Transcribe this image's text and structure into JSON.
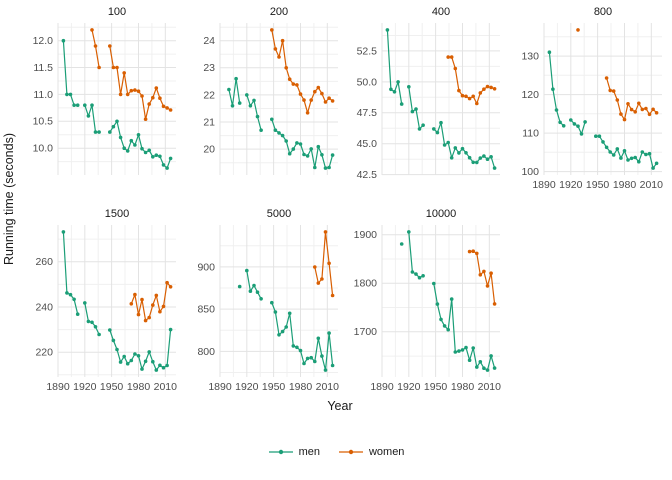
{
  "figure": {
    "xlabel": "Year",
    "ylabel": "Running time (seconds)",
    "colors": {
      "men": "#1B9E77",
      "women": "#D95F02",
      "grid_major": "#E3E3E3",
      "grid_minor": "#F0F0F0",
      "tick_text": "#4D4D4D",
      "title_text": "#1A1A1A"
    },
    "legend": {
      "position": "bottom",
      "items": [
        {
          "label": "men",
          "color": "#1B9E77"
        },
        {
          "label": "women",
          "color": "#D95F02"
        }
      ]
    }
  },
  "chart_data": {
    "type": "line",
    "title": "",
    "xlabel": "Year",
    "ylabel": "Running time (seconds)",
    "legend_position": "bottom",
    "grid": "on",
    "x_domain": [
      1890,
      2022
    ],
    "x_ticks": {
      "values": [
        1890,
        1920,
        1950,
        1980,
        2010
      ],
      "labels": [
        "1890",
        "1920",
        "1950",
        "1980",
        "2010"
      ]
    },
    "series_names": [
      "men",
      "women"
    ],
    "line_break_year_gap": 4,
    "y_expand_fraction": 0.05,
    "facets": [
      {
        "label": "100",
        "show_x_axis": false,
        "y_ticks": {
          "values": [
            10.0,
            10.5,
            11.0,
            11.5,
            12.0
          ],
          "labels": [
            "10.0",
            "10.5",
            "11.0",
            "11.5",
            "12.0"
          ]
        },
        "men": {
          "x": [
            1896,
            1900,
            1904,
            1908,
            1912,
            1920,
            1924,
            1928,
            1932,
            1936,
            1948,
            1952,
            1956,
            1960,
            1964,
            1968,
            1972,
            1976,
            1980,
            1984,
            1988,
            1992,
            1996,
            2000,
            2004,
            2008,
            2012,
            2016
          ],
          "y": [
            12.0,
            11.0,
            11.0,
            10.8,
            10.8,
            10.8,
            10.6,
            10.8,
            10.3,
            10.3,
            10.3,
            10.4,
            10.5,
            10.2,
            10.0,
            9.95,
            10.14,
            10.06,
            10.25,
            9.99,
            9.92,
            9.96,
            9.84,
            9.87,
            9.85,
            9.69,
            9.63,
            9.81
          ]
        },
        "women": {
          "x": [
            1928,
            1932,
            1936,
            1948,
            1952,
            1956,
            1960,
            1964,
            1968,
            1972,
            1976,
            1980,
            1984,
            1988,
            1992,
            1996,
            2000,
            2004,
            2008,
            2012,
            2016
          ],
          "y": [
            12.2,
            11.9,
            11.5,
            11.9,
            11.5,
            11.5,
            11.0,
            11.4,
            11.0,
            11.07,
            11.08,
            11.06,
            10.97,
            10.54,
            10.82,
            10.94,
            11.12,
            10.93,
            10.78,
            10.75,
            10.71
          ]
        }
      },
      {
        "label": "200",
        "show_x_axis": false,
        "y_ticks": {
          "values": [
            20,
            21,
            22,
            23,
            24
          ],
          "labels": [
            "20",
            "21",
            "22",
            "23",
            "24"
          ]
        },
        "men": {
          "x": [
            1900,
            1904,
            1908,
            1912,
            1920,
            1924,
            1928,
            1932,
            1936,
            1948,
            1952,
            1956,
            1960,
            1964,
            1968,
            1972,
            1976,
            1980,
            1984,
            1988,
            1992,
            1996,
            2000,
            2004,
            2008,
            2012,
            2016
          ],
          "y": [
            22.2,
            21.6,
            22.6,
            21.7,
            22.0,
            21.6,
            21.8,
            21.2,
            20.7,
            21.1,
            20.7,
            20.6,
            20.5,
            20.3,
            19.83,
            20.0,
            20.23,
            20.19,
            19.8,
            19.75,
            20.01,
            19.32,
            20.09,
            19.79,
            19.3,
            19.32,
            19.78
          ]
        },
        "women": {
          "x": [
            1948,
            1952,
            1956,
            1960,
            1964,
            1968,
            1972,
            1976,
            1980,
            1984,
            1988,
            1992,
            1996,
            2000,
            2004,
            2008,
            2012,
            2016
          ],
          "y": [
            24.4,
            23.7,
            23.4,
            24.0,
            23.0,
            22.58,
            22.4,
            22.37,
            22.03,
            21.81,
            21.34,
            21.81,
            22.12,
            22.27,
            22.05,
            21.74,
            21.88,
            21.78
          ]
        }
      },
      {
        "label": "400",
        "show_x_axis": false,
        "y_ticks": {
          "values": [
            42.5,
            45.0,
            47.5,
            50.0,
            52.5
          ],
          "labels": [
            "42.5",
            "45.0",
            "47.5",
            "50.0",
            "52.5"
          ]
        },
        "men": {
          "x": [
            1896,
            1900,
            1904,
            1908,
            1912,
            1920,
            1924,
            1928,
            1932,
            1936,
            1948,
            1952,
            1956,
            1960,
            1964,
            1968,
            1972,
            1976,
            1980,
            1984,
            1988,
            1992,
            1996,
            2000,
            2004,
            2008,
            2012,
            2016
          ],
          "y": [
            54.2,
            49.4,
            49.2,
            50.0,
            48.2,
            49.6,
            47.6,
            47.8,
            46.2,
            46.5,
            46.2,
            45.9,
            46.7,
            44.9,
            45.1,
            43.86,
            44.66,
            44.26,
            44.6,
            44.27,
            43.87,
            43.5,
            43.49,
            43.84,
            44.0,
            43.75,
            43.94,
            43.03
          ]
        },
        "women": {
          "x": [
            1964,
            1968,
            1972,
            1976,
            1980,
            1984,
            1988,
            1992,
            1996,
            2000,
            2004,
            2008,
            2012,
            2016
          ],
          "y": [
            52.0,
            52.0,
            51.08,
            49.29,
            48.88,
            48.83,
            48.65,
            48.83,
            48.25,
            49.11,
            49.41,
            49.62,
            49.55,
            49.44
          ]
        }
      },
      {
        "label": "800",
        "show_x_axis": true,
        "y_ticks": {
          "values": [
            100,
            110,
            120,
            130
          ],
          "labels": [
            "100",
            "110",
            "120",
            "130"
          ]
        },
        "men": {
          "x": [
            1896,
            1900,
            1904,
            1908,
            1912,
            1920,
            1924,
            1928,
            1932,
            1936,
            1948,
            1952,
            1956,
            1960,
            1964,
            1968,
            1972,
            1976,
            1980,
            1984,
            1988,
            1992,
            1996,
            2000,
            2004,
            2008,
            2012,
            2016
          ],
          "y": [
            131.0,
            121.4,
            116.0,
            112.8,
            111.9,
            113.4,
            112.4,
            111.8,
            109.8,
            112.9,
            109.2,
            109.2,
            107.7,
            106.3,
            105.1,
            104.3,
            105.9,
            103.5,
            105.4,
            103.0,
            103.45,
            103.66,
            102.58,
            105.08,
            104.45,
            104.65,
            100.91,
            102.15
          ]
        },
        "women": {
          "x": [
            1928,
            1960,
            1964,
            1968,
            1972,
            1976,
            1980,
            1984,
            1988,
            1992,
            1996,
            2000,
            2004,
            2008,
            2012,
            2016
          ],
          "y": [
            136.8,
            124.3,
            121.1,
            120.9,
            118.6,
            114.94,
            113.5,
            117.6,
            116.1,
            115.54,
            117.73,
            116.15,
            116.38,
            114.87,
            116.19,
            115.28
          ]
        }
      },
      {
        "label": "1500",
        "show_x_axis": true,
        "y_ticks": {
          "values": [
            220,
            240,
            260
          ],
          "labels": [
            "220",
            "240",
            "260"
          ]
        },
        "men": {
          "x": [
            1896,
            1900,
            1904,
            1908,
            1912,
            1920,
            1924,
            1928,
            1932,
            1936,
            1948,
            1952,
            1956,
            1960,
            1964,
            1968,
            1972,
            1976,
            1980,
            1984,
            1988,
            1992,
            1996,
            2000,
            2004,
            2008,
            2012,
            2016
          ],
          "y": [
            273.2,
            246.2,
            245.4,
            243.4,
            236.8,
            241.8,
            233.6,
            233.2,
            231.2,
            227.8,
            229.8,
            225.2,
            221.2,
            215.6,
            218.1,
            214.9,
            216.3,
            219.17,
            218.4,
            212.53,
            215.96,
            220.12,
            215.78,
            212.07,
            214.18,
            213.11,
            214.08,
            230.0
          ]
        },
        "women": {
          "x": [
            1972,
            1976,
            1980,
            1984,
            1988,
            1992,
            1996,
            2000,
            2004,
            2008,
            2012,
            2016
          ],
          "y": [
            241.4,
            245.48,
            236.6,
            243.25,
            233.96,
            235.3,
            240.83,
            245.1,
            237.9,
            240.23,
            250.74,
            248.92
          ]
        }
      },
      {
        "label": "5000",
        "show_x_axis": true,
        "y_ticks": {
          "values": [
            800,
            850,
            900
          ],
          "labels": [
            "800",
            "850",
            "900"
          ]
        },
        "men": {
          "x": [
            1912,
            1920,
            1924,
            1928,
            1932,
            1936,
            1948,
            1952,
            1956,
            1960,
            1964,
            1968,
            1972,
            1976,
            1980,
            1984,
            1988,
            1992,
            1996,
            2000,
            2004,
            2008,
            2012,
            2016
          ],
          "y": [
            876.6,
            895.6,
            871.2,
            878.0,
            870.0,
            862.2,
            857.6,
            846.6,
            819.6,
            823.4,
            828.8,
            845.0,
            806.4,
            804.76,
            800.91,
            785.59,
            791.7,
            792.52,
            787.96,
            815.49,
            794.39,
            777.82,
            821.66,
            783.3
          ]
        },
        "women": {
          "x": [
            1996,
            2000,
            2004,
            2008,
            2012,
            2016
          ],
          "y": [
            899.88,
            880.79,
            885.65,
            941.4,
            904.25,
            866.17
          ]
        }
      },
      {
        "label": "10000",
        "show_x_axis": true,
        "y_ticks": {
          "values": [
            1700,
            1800,
            1900
          ],
          "labels": [
            "1700",
            "1800",
            "1900"
          ]
        },
        "men": {
          "x": [
            1912,
            1920,
            1924,
            1928,
            1932,
            1936,
            1948,
            1952,
            1956,
            1960,
            1964,
            1968,
            1972,
            1976,
            1980,
            1984,
            1988,
            1992,
            1996,
            2000,
            2004,
            2008,
            2012,
            2016
          ],
          "y": [
            1880.8,
            1905.8,
            1823.2,
            1818.8,
            1811.4,
            1815.4,
            1799.6,
            1757.0,
            1725.6,
            1712.2,
            1704.4,
            1767.4,
            1658.4,
            1660.38,
            1662.7,
            1667.54,
            1641.46,
            1666.7,
            1627.34,
            1638.2,
            1625.1,
            1621.17,
            1650.42,
            1625.17
          ]
        },
        "women": {
          "x": [
            1988,
            1992,
            1996,
            2000,
            2004,
            2008,
            2012,
            2016
          ],
          "y": [
            1865.21,
            1866.02,
            1861.63,
            1817.49,
            1824.36,
            1794.66,
            1820.75,
            1757.45
          ]
        }
      }
    ]
  }
}
